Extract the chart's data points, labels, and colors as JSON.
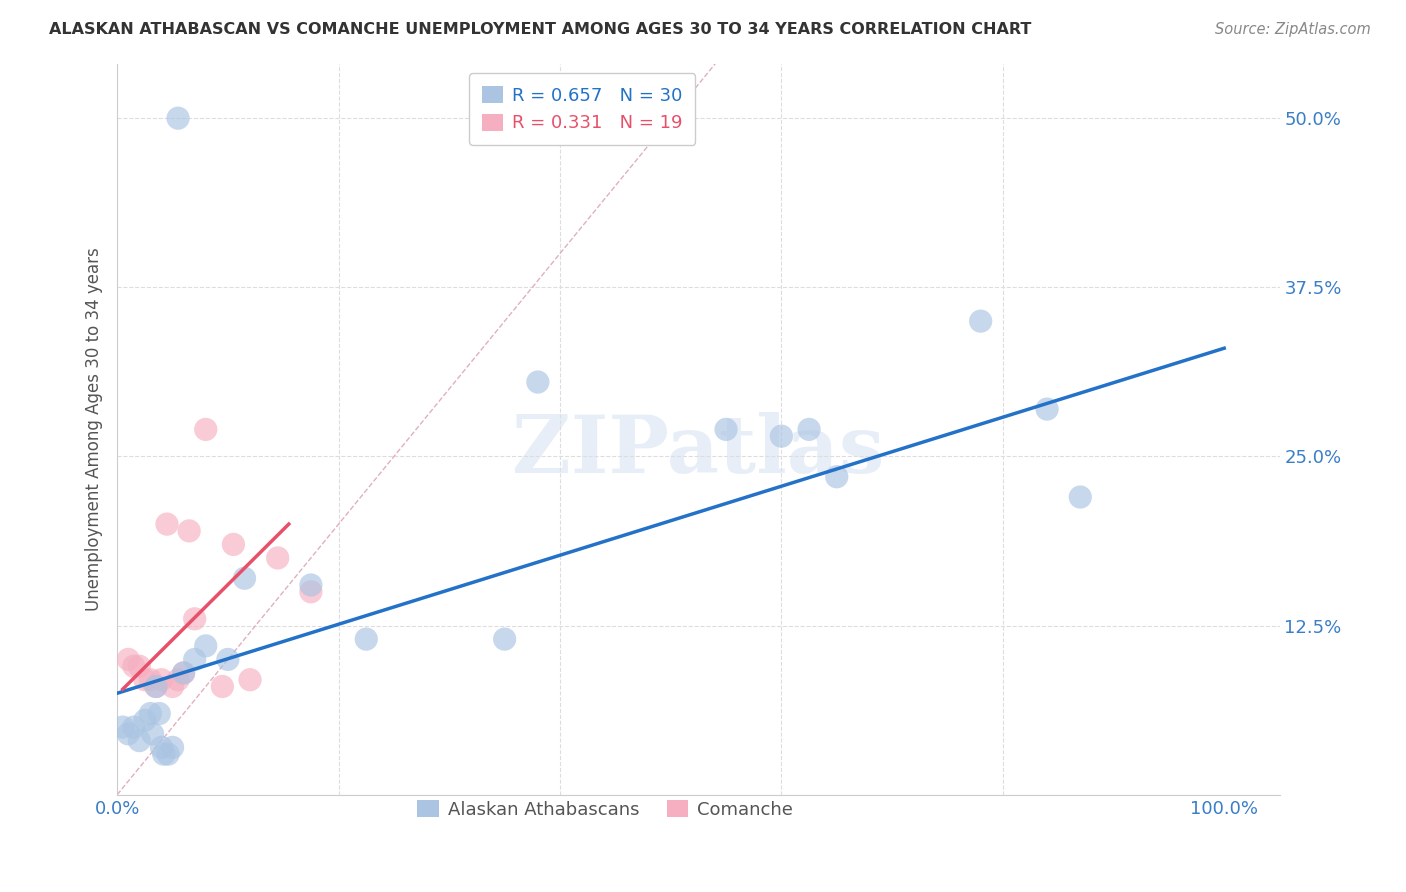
{
  "title": "ALASKAN ATHABASCAN VS COMANCHE UNEMPLOYMENT AMONG AGES 30 TO 34 YEARS CORRELATION CHART",
  "source": "Source: ZipAtlas.com",
  "ylabel": "Unemployment Among Ages 30 to 34 years",
  "x_ticks": [
    0.0,
    0.2,
    0.4,
    0.6,
    0.8,
    1.0
  ],
  "y_ticks": [
    0.0,
    0.125,
    0.25,
    0.375,
    0.5
  ],
  "xlim": [
    0.0,
    1.05
  ],
  "ylim": [
    0.0,
    0.54
  ],
  "blue_R": 0.657,
  "blue_N": 30,
  "pink_R": 0.331,
  "pink_N": 19,
  "blue_color": "#aac4e2",
  "pink_color": "#f5afc0",
  "blue_line_color": "#2472c8",
  "pink_line_color": "#e8506a",
  "ref_line_color": "#cccccc",
  "grid_color": "#dddddd",
  "watermark": "ZIPatlas",
  "blue_scatter_x": [
    0.005,
    0.01,
    0.015,
    0.02,
    0.025,
    0.03,
    0.032,
    0.035,
    0.038,
    0.04,
    0.042,
    0.046,
    0.05,
    0.055,
    0.06,
    0.07,
    0.08,
    0.1,
    0.115,
    0.175,
    0.225,
    0.35,
    0.38,
    0.55,
    0.6,
    0.625,
    0.65,
    0.78,
    0.84,
    0.87
  ],
  "blue_scatter_y": [
    0.05,
    0.045,
    0.05,
    0.04,
    0.055,
    0.06,
    0.045,
    0.08,
    0.06,
    0.035,
    0.03,
    0.03,
    0.035,
    0.5,
    0.09,
    0.1,
    0.11,
    0.1,
    0.16,
    0.155,
    0.115,
    0.115,
    0.305,
    0.27,
    0.265,
    0.27,
    0.235,
    0.35,
    0.285,
    0.22
  ],
  "pink_scatter_x": [
    0.01,
    0.015,
    0.02,
    0.025,
    0.03,
    0.035,
    0.04,
    0.045,
    0.05,
    0.055,
    0.06,
    0.065,
    0.07,
    0.08,
    0.095,
    0.105,
    0.12,
    0.145,
    0.175
  ],
  "pink_scatter_y": [
    0.1,
    0.095,
    0.095,
    0.085,
    0.085,
    0.08,
    0.085,
    0.2,
    0.08,
    0.085,
    0.09,
    0.195,
    0.13,
    0.27,
    0.08,
    0.185,
    0.085,
    0.175,
    0.15
  ],
  "blue_line_x0": 0.0,
  "blue_line_x1": 1.0,
  "blue_line_y0": 0.075,
  "blue_line_y1": 0.33,
  "pink_line_x0": 0.005,
  "pink_line_x1": 0.155,
  "pink_line_y0": 0.078,
  "pink_line_y1": 0.2
}
